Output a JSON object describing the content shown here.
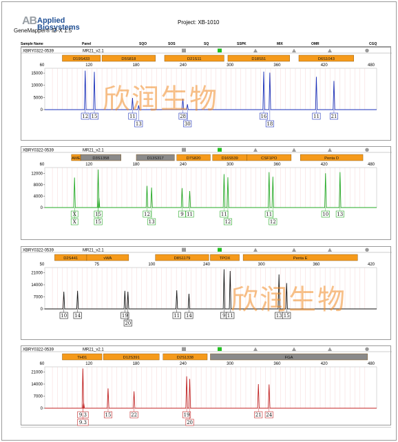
{
  "app": {
    "brand_ab": "AB",
    "brand_line1": "Applied",
    "brand_line2": "Biosystems",
    "version": "GeneMapper® ID-X  1.5",
    "project": "Project: XB-1010"
  },
  "table_header": [
    "Sample Name",
    "Panel",
    "SQO",
    "SOS",
    "SQ",
    "SSPK",
    "MIX",
    "OMR",
    "CGQ"
  ],
  "watermark_text": "欣润生物",
  "colors": {
    "blue": "#1a2fb8",
    "green": "#23a823",
    "black": "#111111",
    "red": "#c02020",
    "orange_bin": "#f59a1b",
    "gray_bin": "#8a8a8a",
    "qc_pass": "#22c022",
    "qc_gray": "#999999",
    "watermark": "#f08c28"
  },
  "panels": [
    {
      "sample": "XBRY0322-0539",
      "panel": "MR21_v2.1",
      "color": "blue",
      "x_ticks": [
        60,
        120,
        180,
        240,
        300,
        360,
        420,
        480
      ],
      "y_ticks": [
        15000,
        10000,
        5000,
        0
      ],
      "y_max": 17000,
      "markers": [
        {
          "name": "D19S433",
          "start": 68,
          "end": 118,
          "fill": "orange"
        },
        {
          "name": "D5S818",
          "start": 120,
          "end": 190,
          "fill": "orange"
        },
        {
          "name": "D21S11",
          "start": 202,
          "end": 280,
          "fill": "orange"
        },
        {
          "name": "D18S51",
          "start": 285,
          "end": 366,
          "fill": "orange"
        },
        {
          "name": "D6S1043",
          "start": 378,
          "end": 450,
          "fill": "orange"
        }
      ],
      "peaks": [
        {
          "x": 98,
          "height": 16000
        },
        {
          "x": 110,
          "height": 15500
        },
        {
          "x": 160,
          "height": 4800
        },
        {
          "x": 168,
          "height": 1800
        },
        {
          "x": 226,
          "height": 4500
        },
        {
          "x": 232,
          "height": 2200
        },
        {
          "x": 332,
          "height": 15600
        },
        {
          "x": 340,
          "height": 15200
        },
        {
          "x": 401,
          "height": 13500
        },
        {
          "x": 424,
          "height": 11800
        }
      ],
      "allele_rows": [
        [
          {
            "x": 98,
            "label": "12"
          },
          {
            "x": 110,
            "label": "15"
          },
          {
            "x": 160,
            "label": "11"
          },
          {
            "x": 226,
            "label": "28"
          },
          {
            "x": 332,
            "label": "16"
          },
          {
            "x": 401,
            "label": "11"
          },
          {
            "x": 424,
            "label": "21"
          }
        ],
        [
          {
            "x": 168,
            "label": "13"
          },
          {
            "x": 232,
            "label": "30"
          },
          {
            "x": 340,
            "label": "18"
          }
        ]
      ],
      "qc": [
        "none",
        "none",
        "gray",
        "green",
        "gray",
        "gray",
        "gray",
        "gray-circle"
      ],
      "show_watermark": true
    },
    {
      "sample": "XBRY0322-0539",
      "panel": "MR21_v2.1",
      "color": "green",
      "x_ticks": [
        60,
        120,
        180,
        240,
        300,
        360,
        420,
        480
      ],
      "y_ticks": [
        12000,
        8000,
        4000,
        0
      ],
      "y_max": 14000,
      "markers": [
        {
          "name": "AME",
          "start": 80,
          "end": 92,
          "fill": "orange"
        },
        {
          "name": "D3S1358",
          "start": 92,
          "end": 145,
          "fill": "gray"
        },
        {
          "name": "D13S317",
          "start": 165,
          "end": 215,
          "fill": "gray"
        },
        {
          "name": "D7S820",
          "start": 218,
          "end": 262,
          "fill": "orange"
        },
        {
          "name": "D16S539",
          "start": 265,
          "end": 310,
          "fill": "orange"
        },
        {
          "name": "CSF1PO",
          "start": 310,
          "end": 368,
          "fill": "orange"
        },
        {
          "name": "Penta D",
          "start": 380,
          "end": 462,
          "fill": "orange"
        }
      ],
      "peaks": [
        {
          "x": 84,
          "height": 10500
        },
        {
          "x": 115,
          "height": 13300
        },
        {
          "x": 116,
          "height": 3400
        },
        {
          "x": 179,
          "height": 7600
        },
        {
          "x": 185,
          "height": 7000
        },
        {
          "x": 225,
          "height": 6800
        },
        {
          "x": 235,
          "height": 5800
        },
        {
          "x": 280,
          "height": 11700
        },
        {
          "x": 285,
          "height": 10600
        },
        {
          "x": 339,
          "height": 12400
        },
        {
          "x": 344,
          "height": 10800
        },
        {
          "x": 413,
          "height": 12000
        },
        {
          "x": 432,
          "height": 12400
        }
      ],
      "allele_rows": [
        [
          {
            "x": 84,
            "label": "X"
          },
          {
            "x": 115,
            "label": "15"
          },
          {
            "x": 179,
            "label": "12"
          },
          {
            "x": 225,
            "label": "9"
          },
          {
            "x": 235,
            "label": "11"
          },
          {
            "x": 280,
            "label": "11"
          },
          {
            "x": 339,
            "label": "11"
          },
          {
            "x": 413,
            "label": "10"
          },
          {
            "x": 432,
            "label": "13"
          }
        ],
        [
          {
            "x": 84,
            "label": "X"
          },
          {
            "x": 115,
            "label": "15"
          },
          {
            "x": 185,
            "label": "13"
          },
          {
            "x": 285,
            "label": "12"
          },
          {
            "x": 344,
            "label": "12"
          }
        ]
      ],
      "qc": [
        "none",
        "none",
        "gray",
        "green",
        "gray",
        "gray",
        "gray",
        "gray-circle"
      ],
      "show_watermark": false
    },
    {
      "sample": "XBRY0322-0539",
      "panel": "MR21_v2.1",
      "color": "black",
      "x_ticks": [
        50,
        75,
        100,
        240,
        300,
        360,
        420
      ],
      "x_ticks_display": [
        "50",
        "75",
        "100",
        "240",
        "300",
        "360",
        "420"
      ],
      "y_ticks": [
        21000,
        14000,
        7000,
        0
      ],
      "y_max": 24000,
      "markers": [
        {
          "name": "D2S441",
          "start": 58,
          "end": 100,
          "fill": "orange"
        },
        {
          "name": "vWA",
          "start": 100,
          "end": 155,
          "fill": "orange"
        },
        {
          "name": "D8S1179",
          "start": 190,
          "end": 260,
          "fill": "orange"
        },
        {
          "name": "TPOX",
          "start": 262,
          "end": 300,
          "fill": "orange"
        },
        {
          "name": "Penta E",
          "start": 305,
          "end": 455,
          "fill": "orange"
        }
      ],
      "peaks": [
        {
          "x": 70,
          "height": 10000
        },
        {
          "x": 88,
          "height": 10500
        },
        {
          "x": 150,
          "height": 10500
        },
        {
          "x": 154,
          "height": 10000
        },
        {
          "x": 218,
          "height": 10800
        },
        {
          "x": 234,
          "height": 8800
        },
        {
          "x": 280,
          "height": 23000
        },
        {
          "x": 288,
          "height": 22000
        },
        {
          "x": 352,
          "height": 20000
        },
        {
          "x": 362,
          "height": 15000
        }
      ],
      "allele_rows": [
        [
          {
            "x": 70,
            "label": "10"
          },
          {
            "x": 88,
            "label": "14"
          },
          {
            "x": 150,
            "label": "19"
          },
          {
            "x": 218,
            "label": "11"
          },
          {
            "x": 234,
            "label": "14"
          },
          {
            "x": 280,
            "label": "9"
          },
          {
            "x": 288,
            "label": "11"
          },
          {
            "x": 352,
            "label": "13"
          },
          {
            "x": 362,
            "label": "15"
          }
        ],
        [
          {
            "x": 154,
            "label": "20"
          }
        ]
      ],
      "qc": [
        "none",
        "none",
        "gray",
        "green",
        "gray",
        "gray",
        "gray",
        "gray-circle"
      ],
      "show_watermark": true
    },
    {
      "sample": "XBRY0322-0539",
      "panel": "MR21_v2.1",
      "color": "red",
      "x_ticks": [
        60,
        120,
        180,
        240,
        300,
        360,
        420,
        480
      ],
      "y_ticks": [
        21000,
        14000,
        7000,
        0
      ],
      "y_max": 24000,
      "markers": [
        {
          "name": "TH01",
          "start": 68,
          "end": 120,
          "fill": "orange"
        },
        {
          "name": "D12S391",
          "start": 122,
          "end": 195,
          "fill": "orange"
        },
        {
          "name": "D2S1338",
          "start": 200,
          "end": 258,
          "fill": "orange"
        },
        {
          "name": "FGA",
          "start": 262,
          "end": 468,
          "fill": "gray"
        }
      ],
      "peaks": [
        {
          "x": 95,
          "height": 23000
        },
        {
          "x": 96,
          "height": 3000
        },
        {
          "x": 128,
          "height": 11500
        },
        {
          "x": 162,
          "height": 9800
        },
        {
          "x": 231,
          "height": 18500
        },
        {
          "x": 235,
          "height": 17000
        },
        {
          "x": 325,
          "height": 14000
        },
        {
          "x": 339,
          "height": 13800
        }
      ],
      "allele_rows": [
        [
          {
            "x": 95,
            "label": "9.3"
          },
          {
            "x": 128,
            "label": "15"
          },
          {
            "x": 162,
            "label": "22"
          },
          {
            "x": 231,
            "label": "19"
          },
          {
            "x": 325,
            "label": "21"
          },
          {
            "x": 339,
            "label": "24"
          }
        ],
        [
          {
            "x": 95,
            "label": "9.3"
          },
          {
            "x": 235,
            "label": "20"
          }
        ]
      ],
      "qc": [
        "none",
        "none",
        "gray",
        "green",
        "gray",
        "gray",
        "gray",
        "gray-circle"
      ],
      "show_watermark": false
    }
  ]
}
